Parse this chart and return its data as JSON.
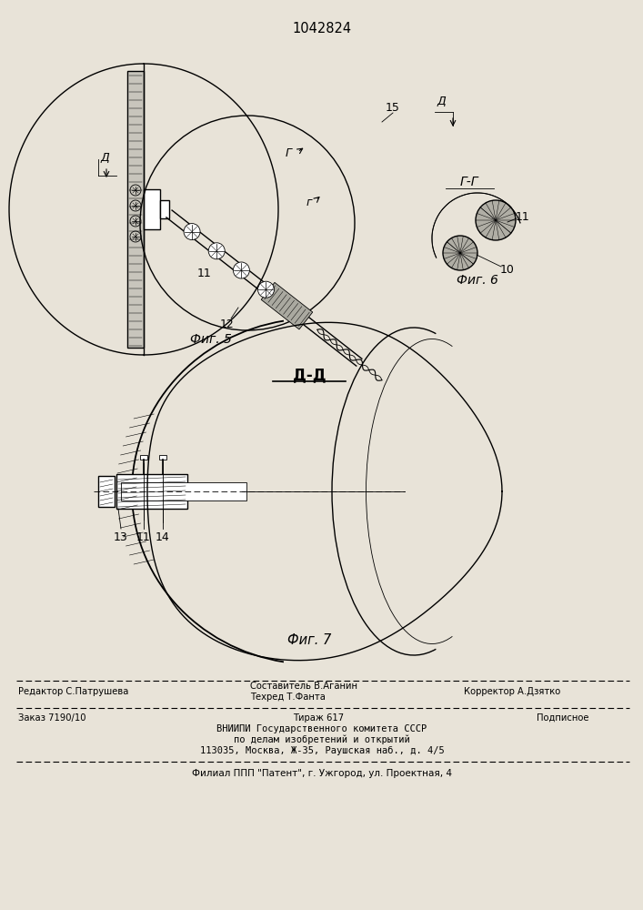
{
  "bg_color": "#e8e3d8",
  "patent_number": "1042824",
  "fig5_caption": "Фиг. 5",
  "fig6_caption": "Фиг. 6",
  "fig7_caption": "Фиг. 7",
  "section_dd": "Д-Д",
  "section_gg": "Г-Г",
  "editor_line": "Редактор С.Патрушева",
  "composer_line": "Составитель В.Аганин",
  "techred_line": "Техред Т.Фанта",
  "corrector_line": "Корректор А.Дзятко",
  "order_line": "Заказ 7190/10",
  "tirazh_line": "Тираж 617",
  "podpisnoe_line": "Подписное",
  "vniip_line1": "ВНИИПИ Государственного комитета СССР",
  "vniip_line2": "по делам изобретений и открытий",
  "vniip_line3": "113035, Москва, Ж-35, Раушская наб., д. 4/5",
  "filial_line": "Филиал ППП \"Патент\", г. Ужгород, ул. Проектная, 4"
}
